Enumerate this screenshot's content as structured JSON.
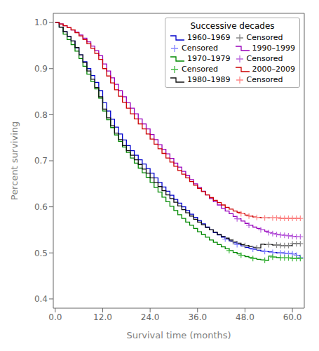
{
  "chart_data": {
    "type": "line",
    "line_style": "step",
    "title": "Successive decades",
    "xlabel": "Survival time (months)",
    "ylabel": "Percent surviving",
    "legend": "upper right",
    "grid": false,
    "xlim": [
      -0.5,
      63
    ],
    "ylim": [
      0.38,
      1.02
    ],
    "xticks": [
      {
        "value": 0.0,
        "label": "0.0"
      },
      {
        "value": 12.0,
        "label": "12.0"
      },
      {
        "value": 24.0,
        "label": "24.0"
      },
      {
        "value": 36.0,
        "label": "36.0"
      },
      {
        "value": 48.0,
        "label": "48.0"
      },
      {
        "value": 60.0,
        "label": "60.0"
      }
    ],
    "yticks": [
      0.4,
      0.5,
      0.6,
      0.7,
      0.8,
      0.9,
      {
        "value": 1.0,
        "label": "1.0"
      }
    ],
    "x": [
      0,
      1,
      2,
      3,
      4,
      5,
      6,
      7,
      8,
      9,
      10,
      11,
      12,
      13,
      14,
      15,
      16,
      17,
      18,
      19,
      20,
      21,
      22,
      23,
      24,
      25,
      26,
      27,
      28,
      29,
      30,
      31,
      32,
      33,
      34,
      35,
      36,
      37,
      38,
      39,
      40,
      41,
      42,
      43,
      44,
      45,
      46,
      47,
      48,
      49,
      50,
      51,
      52,
      53,
      54,
      55,
      56,
      57,
      58,
      59,
      60,
      61,
      62
    ],
    "series": [
      {
        "name": "1960–1969",
        "color": "#0000cc",
        "values": [
          1.0,
          0.99,
          0.98,
          0.97,
          0.96,
          0.945,
          0.93,
          0.915,
          0.9,
          0.885,
          0.87,
          0.852,
          0.826,
          0.808,
          0.79,
          0.773,
          0.758,
          0.745,
          0.733,
          0.722,
          0.712,
          0.702,
          0.693,
          0.683,
          0.673,
          0.663,
          0.653,
          0.643,
          0.634,
          0.625,
          0.616,
          0.608,
          0.6,
          0.592,
          0.584,
          0.577,
          0.57,
          0.563,
          0.556,
          0.55,
          0.544,
          0.539,
          0.534,
          0.53,
          0.526,
          0.522,
          0.518,
          0.515,
          0.512,
          0.51,
          0.508,
          0.506,
          0.504,
          0.503,
          0.502,
          0.501,
          0.5,
          0.5,
          0.499,
          0.499,
          0.498,
          0.495,
          0.49
        ]
      },
      {
        "name": "Censored",
        "type": "scatter",
        "marker": "plus",
        "color": "#8888ff",
        "x": [
          43,
          46,
          50,
          53,
          55,
          57,
          58,
          59,
          60,
          61,
          62
        ],
        "values": [
          0.53,
          0.518,
          0.508,
          0.503,
          0.501,
          0.5,
          0.499,
          0.499,
          0.498,
          0.495,
          0.49
        ]
      },
      {
        "name": "1970–1979",
        "color": "#008800",
        "values": [
          1.0,
          0.99,
          0.975,
          0.963,
          0.952,
          0.938,
          0.922,
          0.905,
          0.888,
          0.872,
          0.856,
          0.836,
          0.808,
          0.789,
          0.772,
          0.756,
          0.742,
          0.73,
          0.718,
          0.706,
          0.695,
          0.684,
          0.674,
          0.664,
          0.653,
          0.642,
          0.632,
          0.621,
          0.611,
          0.601,
          0.592,
          0.583,
          0.575,
          0.567,
          0.56,
          0.553,
          0.546,
          0.54,
          0.534,
          0.528,
          0.523,
          0.518,
          0.513,
          0.509,
          0.505,
          0.501,
          0.498,
          0.495,
          0.492,
          0.49,
          0.488,
          0.486,
          0.485,
          0.484,
          0.493,
          0.491,
          0.49,
          0.489,
          0.489,
          0.489,
          0.488,
          0.488,
          0.488
        ]
      },
      {
        "name": "Censored",
        "type": "scatter",
        "marker": "plus",
        "color": "#44bb44",
        "x": [
          44,
          47,
          50,
          53,
          55,
          57,
          58,
          59,
          60,
          61,
          62
        ],
        "values": [
          0.505,
          0.495,
          0.488,
          0.484,
          0.491,
          0.489,
          0.489,
          0.489,
          0.488,
          0.488,
          0.488
        ]
      },
      {
        "name": "1980–1989",
        "color": "#111111",
        "values": [
          1.0,
          0.99,
          0.98,
          0.97,
          0.96,
          0.946,
          0.93,
          0.913,
          0.895,
          0.877,
          0.859,
          0.839,
          0.812,
          0.793,
          0.776,
          0.76,
          0.746,
          0.733,
          0.722,
          0.712,
          0.702,
          0.692,
          0.682,
          0.673,
          0.663,
          0.653,
          0.644,
          0.635,
          0.626,
          0.618,
          0.61,
          0.602,
          0.594,
          0.587,
          0.58,
          0.573,
          0.567,
          0.561,
          0.555,
          0.55,
          0.545,
          0.54,
          0.536,
          0.532,
          0.528,
          0.524,
          0.521,
          0.518,
          0.516,
          0.514,
          0.512,
          0.511,
          0.519,
          0.518,
          0.518,
          0.517,
          0.517,
          0.516,
          0.516,
          0.516,
          0.52,
          0.52,
          0.52
        ]
      },
      {
        "name": "Censored",
        "type": "scatter",
        "marker": "plus",
        "color": "#888888",
        "x": [
          45,
          48,
          51,
          54,
          56,
          57,
          58,
          59,
          60,
          61,
          62
        ],
        "values": [
          0.524,
          0.516,
          0.511,
          0.518,
          0.517,
          0.516,
          0.516,
          0.516,
          0.52,
          0.52,
          0.52
        ]
      },
      {
        "name": "1990–1999",
        "color": "#9900bb",
        "values": [
          1.0,
          0.997,
          0.993,
          0.989,
          0.984,
          0.979,
          0.973,
          0.966,
          0.958,
          0.949,
          0.939,
          0.928,
          0.91,
          0.895,
          0.88,
          0.866,
          0.852,
          0.839,
          0.826,
          0.814,
          0.802,
          0.791,
          0.78,
          0.769,
          0.757,
          0.746,
          0.735,
          0.725,
          0.715,
          0.705,
          0.695,
          0.686,
          0.677,
          0.668,
          0.659,
          0.65,
          0.642,
          0.634,
          0.626,
          0.618,
          0.611,
          0.604,
          0.597,
          0.591,
          0.585,
          0.579,
          0.574,
          0.569,
          0.564,
          0.56,
          0.556,
          0.553,
          0.55,
          0.547,
          0.544,
          0.542,
          0.54,
          0.539,
          0.538,
          0.537,
          0.536,
          0.535,
          0.535
        ]
      },
      {
        "name": "Censored",
        "type": "scatter",
        "marker": "plus",
        "color": "#bb66dd",
        "x": [
          46,
          49,
          52,
          54,
          55,
          56,
          57,
          58,
          59,
          60,
          61,
          62
        ],
        "values": [
          0.574,
          0.56,
          0.55,
          0.544,
          0.542,
          0.54,
          0.539,
          0.538,
          0.537,
          0.536,
          0.535,
          0.535
        ]
      },
      {
        "name": "2000–2009",
        "color": "#cc0000",
        "values": [
          1.0,
          0.997,
          0.993,
          0.989,
          0.984,
          0.978,
          0.971,
          0.963,
          0.954,
          0.944,
          0.933,
          0.92,
          0.9,
          0.884,
          0.869,
          0.854,
          0.84,
          0.827,
          0.814,
          0.802,
          0.791,
          0.78,
          0.769,
          0.758,
          0.747,
          0.736,
          0.726,
          0.716,
          0.706,
          0.697,
          0.688,
          0.679,
          0.671,
          0.663,
          0.655,
          0.647,
          0.64,
          0.633,
          0.626,
          0.62,
          0.614,
          0.609,
          0.604,
          0.599,
          0.595,
          0.591,
          0.588,
          0.585,
          0.582,
          0.58,
          0.578,
          0.577,
          0.576,
          0.576,
          0.576,
          0.576,
          0.576,
          0.575,
          0.575,
          0.575,
          0.575,
          0.575,
          0.575
        ]
      },
      {
        "name": "Censored",
        "type": "scatter",
        "marker": "plus",
        "color": "#ff8888",
        "x": [
          47,
          49,
          51,
          53,
          55,
          56,
          57,
          58,
          59,
          60,
          61,
          62
        ],
        "values": [
          0.585,
          0.58,
          0.577,
          0.576,
          0.576,
          0.576,
          0.575,
          0.575,
          0.575,
          0.575,
          0.575,
          0.575
        ]
      }
    ]
  }
}
